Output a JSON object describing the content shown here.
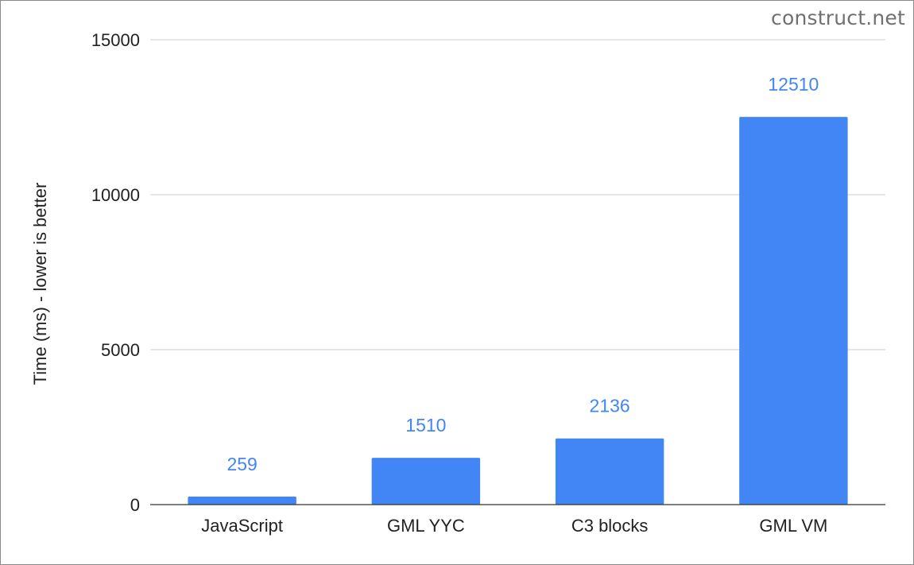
{
  "watermark": "construct.net",
  "chart_data": {
    "type": "bar",
    "title": "",
    "xlabel": "",
    "ylabel": "Time (ms) - lower is better",
    "categories": [
      "JavaScript",
      "GML YYC",
      "C3 blocks",
      "GML VM"
    ],
    "values": [
      259,
      1510,
      2136,
      12510
    ],
    "data_labels": [
      "259",
      "1510",
      "2136",
      "12510"
    ],
    "ylim": [
      0,
      15000
    ],
    "yticks": [
      0,
      5000,
      10000,
      15000
    ],
    "ytick_labels": [
      "0",
      "5000",
      "10000",
      "15000"
    ],
    "bar_color": "#4285f4",
    "label_color": "#4285f4",
    "grid": true,
    "legend": "none"
  }
}
